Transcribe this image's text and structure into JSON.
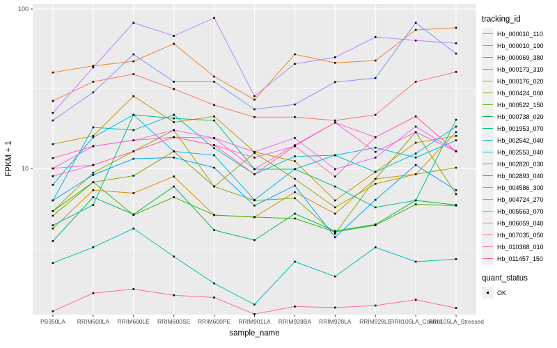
{
  "chart_data": {
    "type": "line",
    "title": "",
    "xlabel": "sample_name",
    "ylabel": "FPKM + 1",
    "y_scale": "log10",
    "ylim": [
      1.1,
      110
    ],
    "y_major_ticks": [
      100,
      10
    ],
    "y_tick_labels": [
      "100",
      "10"
    ],
    "y_minor_ticks": [
      31.623,
      3.1623
    ],
    "grid": "white-on-gray",
    "legend_position": "right",
    "categories": [
      "PB350LA",
      "RRIM600LA",
      "RRIM600LE",
      "RRIM600SE",
      "RRIM600PE",
      "RRIM901LA",
      "RRIM928BA",
      "RRIM928LA",
      "RRIM928LE",
      "RRII105LA_Control",
      "RRII105LA_Stressed"
    ],
    "series": [
      {
        "name": "Hb_000010_110",
        "color": "#F8766D",
        "values": [
          26.5,
          35,
          39,
          31.5,
          25,
          21,
          21,
          20,
          21.7,
          35,
          40.3
        ]
      },
      {
        "name": "Hb_000010_190",
        "color": "#EA8331",
        "values": [
          40,
          44,
          47,
          60.5,
          37.7,
          27,
          52,
          46,
          47.5,
          74,
          76.3
        ]
      },
      {
        "name": "Hb_000069_380",
        "color": "#D89000",
        "values": [
          4.2,
          7.3,
          7.0,
          8.9,
          5.1,
          4.95,
          7.1,
          5.2,
          8.6,
          9.2,
          16.9
        ]
      },
      {
        "name": "Hb_000173_310",
        "color": "#C09B00",
        "values": [
          14.2,
          16,
          28.4,
          19.5,
          21.2,
          12.7,
          11.1,
          6.3,
          9.5,
          14.5,
          16
        ]
      },
      {
        "name": "Hb_000176_020",
        "color": "#A3A500",
        "values": [
          5.4,
          9.4,
          12.8,
          17.4,
          7.7,
          12.5,
          8.6,
          5.7,
          8.0,
          9.2,
          10.1
        ]
      },
      {
        "name": "Hb_000424_060",
        "color": "#7CAE00",
        "values": [
          5.05,
          8.2,
          9.0,
          12.8,
          7.7,
          6.3,
          6.5,
          3.9,
          8.6,
          16.9,
          6.9
        ]
      },
      {
        "name": "Hb_000522_150",
        "color": "#39B600",
        "values": [
          5.4,
          8.2,
          5.1,
          6.6,
          5.1,
          4.95,
          4.85,
          4.0,
          4.4,
          5.95,
          5.85
        ]
      },
      {
        "name": "Hb_000738_020",
        "color": "#00BB4E",
        "values": [
          3.5,
          6.6,
          5.15,
          7.7,
          4.1,
          3.55,
          5.2,
          4.05,
          4.45,
          6.3,
          5.9
        ]
      },
      {
        "name": "Hb_001953_070",
        "color": "#00C087",
        "values": [
          4.4,
          5.9,
          21.7,
          20.6,
          20,
          9.9,
          9.9,
          7.7,
          5.7,
          6.3,
          20.2
        ]
      },
      {
        "name": "Hb_002542_040",
        "color": "#00C0B2",
        "values": [
          2.55,
          3.2,
          4.2,
          2.8,
          1.9,
          1.4,
          2.6,
          2.1,
          3.2,
          2.6,
          2.7
        ]
      },
      {
        "name": "Hb_002553_040",
        "color": "#00BDD0",
        "values": [
          6.3,
          18.1,
          17.4,
          21.7,
          13.4,
          9.2,
          11.9,
          12.1,
          9.5,
          12.4,
          18.3
        ]
      },
      {
        "name": "Hb_002820_030",
        "color": "#00B5ED",
        "values": [
          7.9,
          15.7,
          21.7,
          12.8,
          12.1,
          6.35,
          9.9,
          12.1,
          13.5,
          11.7,
          15
        ]
      },
      {
        "name": "Hb_002893_040",
        "color": "#00A6FF",
        "values": [
          6.3,
          9.1,
          11.5,
          11.7,
          10.1,
          5.85,
          7.8,
          3.7,
          6.35,
          10.5,
          7.3
        ]
      },
      {
        "name": "Hb_004586_300",
        "color": "#7C96FF",
        "values": [
          20,
          30,
          52,
          35,
          35,
          23.5,
          25.2,
          34.8,
          36.9,
          82,
          52.5
        ]
      },
      {
        "name": "Hb_004724_270",
        "color": "#BC81FF",
        "values": [
          22.3,
          43,
          82,
          67.8,
          88,
          28.4,
          45.3,
          49.8,
          66.7,
          63.5,
          61
        ]
      },
      {
        "name": "Hb_005563_070",
        "color": "#E26EF7",
        "values": [
          10,
          13.8,
          15,
          17.4,
          15.5,
          12.7,
          15.5,
          9.9,
          11.7,
          18.3,
          12.8
        ]
      },
      {
        "name": "Hb_006059_040",
        "color": "#F863DF",
        "values": [
          8.95,
          10.5,
          12.8,
          15.7,
          14,
          11.7,
          13.8,
          19.4,
          15.7,
          21.2,
          12.8
        ]
      },
      {
        "name": "Hb_007035_050",
        "color": "#FF61C7",
        "values": [
          11.6,
          13.8,
          15.0,
          15.7,
          15.5,
          9.9,
          14,
          19.4,
          12.7,
          16.9,
          12.8
        ]
      },
      {
        "name": "Hb_010368_010",
        "color": "#FF68A8",
        "values": [
          10,
          10.5,
          12.8,
          15.7,
          14,
          9.2,
          13.8,
          8.9,
          15.7,
          21.2,
          12.8
        ]
      },
      {
        "name": "Hb_011457_150",
        "color": "#FF6C90",
        "values": [
          1.27,
          1.65,
          1.75,
          1.6,
          1.55,
          1.22,
          1.36,
          1.34,
          1.38,
          1.5,
          1.33
        ]
      }
    ]
  },
  "legend": {
    "tracking_title": "tracking_id",
    "quant_title": "quant_status",
    "quant_items": [
      {
        "label": "OK",
        "marker": "black-square-icon"
      }
    ]
  },
  "style_colors": {
    "panel_background": "#EBEBEB",
    "gridline": "#FFFFFF",
    "axis_text": "#4D4D4D",
    "point": "#000000",
    "legend_key_background": "#F0F0F0"
  }
}
